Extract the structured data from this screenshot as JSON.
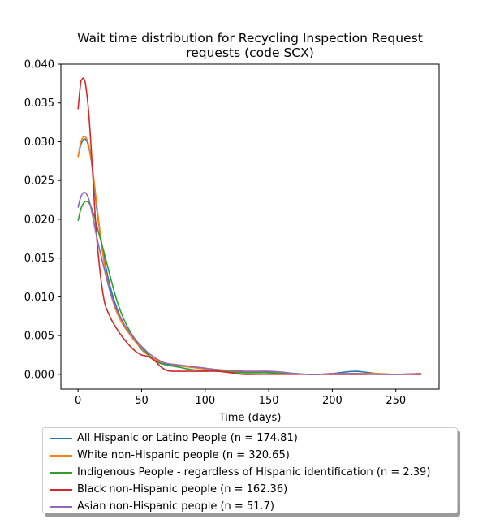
{
  "chart_data": {
    "type": "line",
    "title": [
      "Wait time distribution  for Recycling Inspection Request",
      "requests (code SCX)"
    ],
    "xlabel": "Time (days)",
    "ylabel": "",
    "xlim": [
      -13.5,
      284
    ],
    "ylim": [
      -0.0019,
      0.04
    ],
    "x_ticks": [
      0,
      50,
      100,
      150,
      200,
      250
    ],
    "x_tick_labels": [
      "0",
      "50",
      "100",
      "150",
      "200",
      "250"
    ],
    "y_ticks": [
      0.0,
      0.005,
      0.01,
      0.015,
      0.02,
      0.025,
      0.03,
      0.035,
      0.04
    ],
    "y_tick_labels": [
      "0.000",
      "0.005",
      "0.010",
      "0.015",
      "0.020",
      "0.025",
      "0.030",
      "0.035",
      "0.040"
    ],
    "grid": false,
    "legend_position": "below",
    "series": [
      {
        "name": "All Hispanic or Latino People (n = 174.81)",
        "color": "#1f77b4",
        "x": [
          0,
          2,
          4,
          6,
          8,
          10,
          12,
          15,
          20,
          25,
          30,
          35,
          40,
          45,
          50,
          55,
          60,
          65,
          70,
          80,
          90,
          100,
          110,
          120,
          130,
          140,
          150,
          160,
          170,
          180,
          190,
          200,
          210,
          218,
          225,
          235,
          250,
          270
        ],
        "y": [
          0.0281,
          0.0295,
          0.0302,
          0.0303,
          0.0296,
          0.028,
          0.0255,
          0.021,
          0.0155,
          0.0115,
          0.0088,
          0.0068,
          0.0055,
          0.0043,
          0.0032,
          0.0025,
          0.0019,
          0.0015,
          0.0013,
          0.0011,
          0.0009,
          0.0007,
          0.0005,
          0.0005,
          0.0004,
          0.0003,
          0.0003,
          0.0002,
          0.0001,
          0.0,
          0.0,
          0.0001,
          0.0003,
          0.0004,
          0.0003,
          0.0001,
          0.0,
          0.0001
        ]
      },
      {
        "name": "White non-Hispanic people (n = 320.65)",
        "color": "#ff7f0e",
        "x": [
          0,
          2,
          4,
          6,
          8,
          10,
          12,
          15,
          20,
          25,
          30,
          35,
          40,
          45,
          50,
          55,
          60,
          65,
          70,
          80,
          90,
          100,
          110,
          120,
          130,
          140,
          150,
          160,
          170,
          180,
          190,
          200,
          210,
          220,
          235,
          250,
          270
        ],
        "y": [
          0.028,
          0.0298,
          0.0306,
          0.0306,
          0.0298,
          0.0282,
          0.0258,
          0.0215,
          0.015,
          0.0108,
          0.0082,
          0.0065,
          0.0053,
          0.0042,
          0.0033,
          0.0025,
          0.002,
          0.0016,
          0.0014,
          0.0011,
          0.0009,
          0.0007,
          0.0006,
          0.0004,
          0.0003,
          0.0003,
          0.0002,
          0.0002,
          0.0001,
          0.0,
          0.0,
          0.0001,
          0.0001,
          0.0001,
          0.0001,
          0.0,
          0.0001
        ]
      },
      {
        "name": "Indigenous People - regardless of Hispanic identification (n = 2.39)",
        "color": "#2ca02c",
        "x": [
          0,
          2,
          4,
          6,
          8,
          10,
          12,
          15,
          20,
          25,
          30,
          35,
          40,
          45,
          50,
          55,
          60,
          65,
          70,
          80,
          90,
          100,
          110,
          120,
          130,
          140,
          150,
          160,
          170,
          180,
          190,
          200,
          210,
          220,
          235,
          250,
          270
        ],
        "y": [
          0.0198,
          0.0212,
          0.022,
          0.0223,
          0.0222,
          0.0217,
          0.0208,
          0.019,
          0.016,
          0.0128,
          0.0098,
          0.0075,
          0.0058,
          0.0045,
          0.0035,
          0.0026,
          0.0018,
          0.0014,
          0.0012,
          0.0009,
          0.0006,
          0.0005,
          0.0004,
          0.0003,
          0.0002,
          0.0002,
          0.0002,
          0.0001,
          0.0001,
          0.0,
          0.0,
          0.0,
          0.0,
          0.0,
          0.0,
          0.0,
          0.0
        ]
      },
      {
        "name": "Black non-Hispanic people (n = 162.36)",
        "color": "#d62728",
        "x": [
          0,
          2,
          3,
          4,
          5,
          6,
          8,
          10,
          12,
          15,
          20,
          25,
          30,
          35,
          40,
          45,
          50,
          55,
          60,
          65,
          70,
          75,
          80,
          90,
          100,
          110,
          120,
          130,
          140,
          150,
          160,
          170,
          180,
          200,
          220,
          240,
          270
        ],
        "y": [
          0.0342,
          0.0375,
          0.038,
          0.0382,
          0.038,
          0.0373,
          0.0345,
          0.03,
          0.0245,
          0.017,
          0.01,
          0.0075,
          0.006,
          0.0048,
          0.0038,
          0.003,
          0.0025,
          0.0023,
          0.0018,
          0.001,
          0.0005,
          0.0004,
          0.0004,
          0.0004,
          0.0004,
          0.0004,
          0.0002,
          0.0,
          0.0,
          0.0,
          0.0,
          0.0,
          0.0,
          0.0,
          0.0,
          0.0,
          0.0
        ]
      },
      {
        "name": "Asian non-Hispanic people (n = 51.7)",
        "color": "#9467bd",
        "x": [
          0,
          2,
          4,
          6,
          8,
          10,
          12,
          15,
          20,
          25,
          30,
          35,
          40,
          45,
          50,
          55,
          60,
          65,
          70,
          80,
          90,
          100,
          110,
          120,
          130,
          140,
          150,
          160,
          170,
          180,
          190,
          200,
          210,
          220,
          235,
          250,
          270
        ],
        "y": [
          0.0215,
          0.0228,
          0.0234,
          0.0234,
          0.0228,
          0.0216,
          0.02,
          0.0175,
          0.014,
          0.0108,
          0.0085,
          0.0068,
          0.0055,
          0.0045,
          0.0036,
          0.0028,
          0.0022,
          0.0017,
          0.0014,
          0.0012,
          0.001,
          0.0008,
          0.0006,
          0.0005,
          0.0004,
          0.0004,
          0.0004,
          0.0003,
          0.0001,
          0.0,
          0.0,
          0.0001,
          0.0001,
          0.0001,
          0.0,
          0.0,
          0.0001
        ]
      }
    ]
  }
}
